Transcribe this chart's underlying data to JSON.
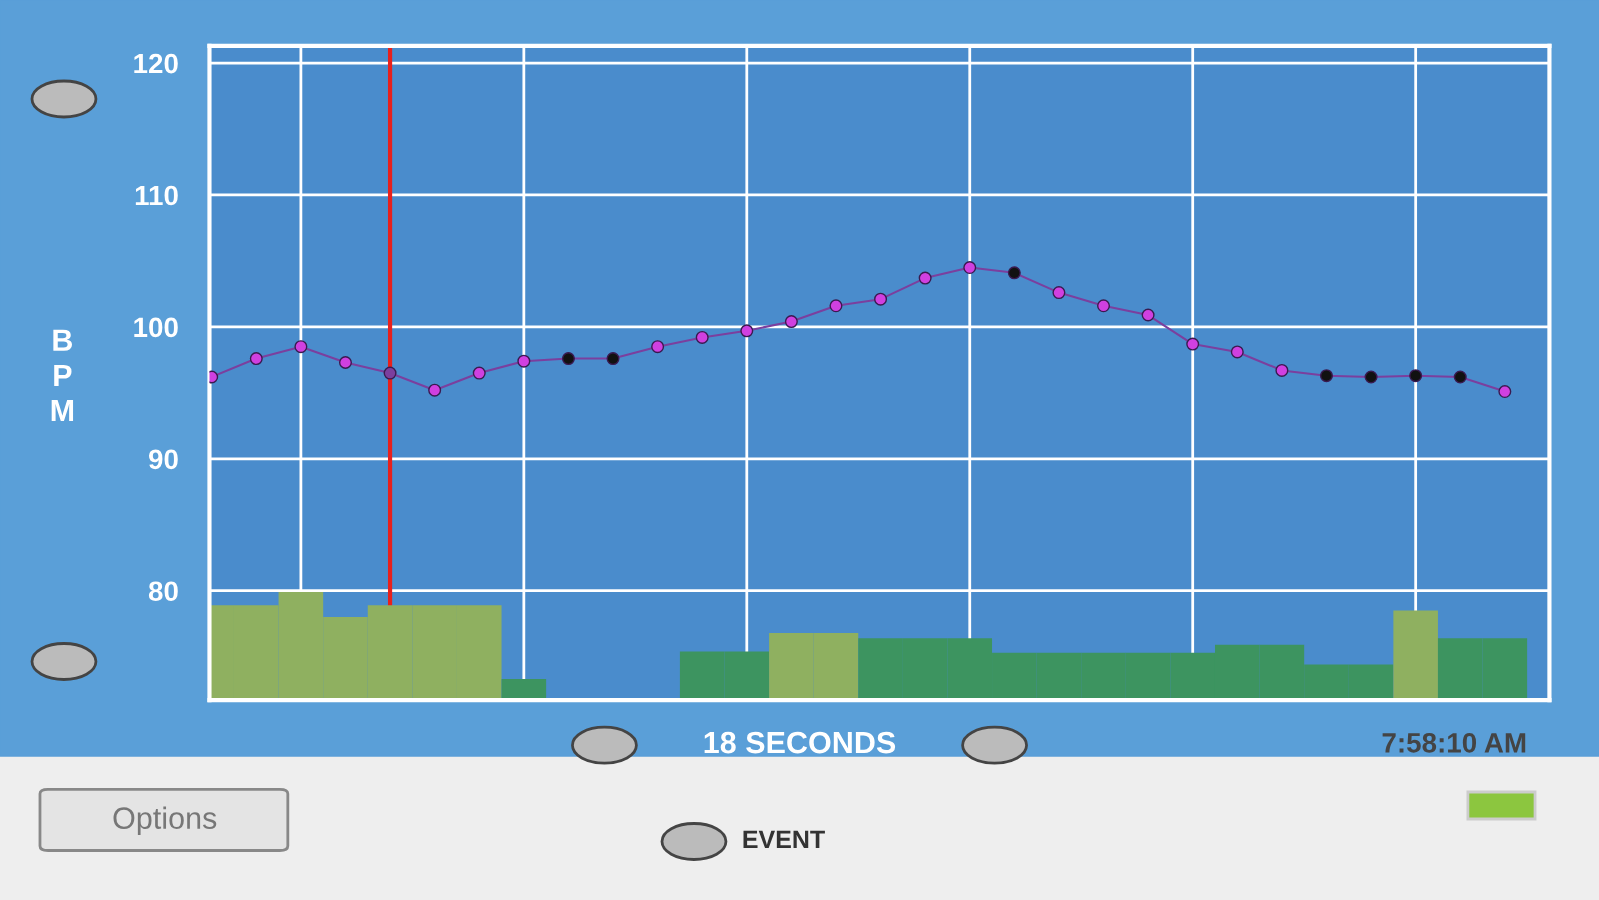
{
  "chart_data": {
    "type": "line",
    "ylabel": "BPM",
    "xlabel": "18 SECONDS",
    "categories": [
      null,
      null,
      null,
      null,
      null,
      null,
      null,
      null,
      null,
      null,
      null,
      null,
      null,
      null,
      null,
      null,
      null,
      null,
      null,
      null,
      null,
      null,
      null,
      null,
      null,
      null,
      null,
      null,
      null,
      null
    ],
    "ylim": [
      71.7,
      121.3
    ],
    "yticks": [
      80,
      90,
      100,
      110,
      120
    ],
    "grid": true,
    "marker": "circle",
    "line_style": "solid",
    "legend": false,
    "series": [
      {
        "type": "bar",
        "colors": [
          "#8fb060",
          "#8fb060",
          "#8fb060",
          "#8fb060",
          "#8fb060",
          "#8fb060",
          "#8fb060",
          "#3d9460",
          "#3d9460",
          "#3d9460",
          "#3d9460",
          "#3d9460",
          "#3d9460",
          "#8fb060",
          "#8fb060",
          "#3d9460",
          "#3d9460",
          "#3d9460",
          "#3d9460",
          "#3d9460",
          "#3d9460",
          "#3d9460",
          "#3d9460",
          "#3d9460",
          "#3d9460",
          "#3d9460",
          "#3d9460",
          "#8fb060",
          "#3d9460",
          "#3d9460"
        ],
        "values": [
          78.9,
          78.9,
          79.9,
          78.0,
          78.9,
          78.9,
          78.9,
          73.3,
          null,
          null,
          null,
          75.4,
          75.4,
          76.8,
          76.8,
          76.4,
          76.4,
          76.4,
          75.3,
          75.3,
          75.3,
          75.3,
          75.3,
          75.9,
          75.9,
          74.4,
          74.4,
          78.5,
          76.4,
          76.4
        ]
      },
      {
        "color": "#7b3f9e",
        "colors": [
          "#d040e0",
          "#d040e0",
          "#d040e0",
          "#d040e0",
          "#7b3f9e",
          "#d040e0",
          "#d040e0",
          "#d040e0",
          "#111111",
          "#111111",
          "#d040e0",
          "#d040e0",
          "#d040e0",
          "#d040e0",
          "#d040e0",
          "#d040e0",
          "#d040e0",
          "#d040e0",
          "#111111",
          "#d040e0",
          "#d040e0",
          "#d040e0",
          "#d040e0",
          "#d040e0",
          "#d040e0",
          "#111111",
          "#111111",
          "#111111",
          "#111111",
          "#d040e0"
        ],
        "values": [
          96.2,
          97.6,
          98.5,
          97.3,
          96.5,
          95.2,
          96.5,
          97.4,
          97.6,
          97.6,
          98.5,
          99.2,
          99.7,
          100.4,
          101.6,
          102.1,
          103.7,
          104.5,
          104.1,
          102.6,
          101.6,
          100.9,
          98.7,
          98.1,
          96.7,
          96.3,
          96.2,
          96.3,
          96.2,
          95.1
        ]
      }
    ],
    "annotations": [
      "7:58:10 AM",
      "Options",
      "EVENT"
    ]
  }
}
